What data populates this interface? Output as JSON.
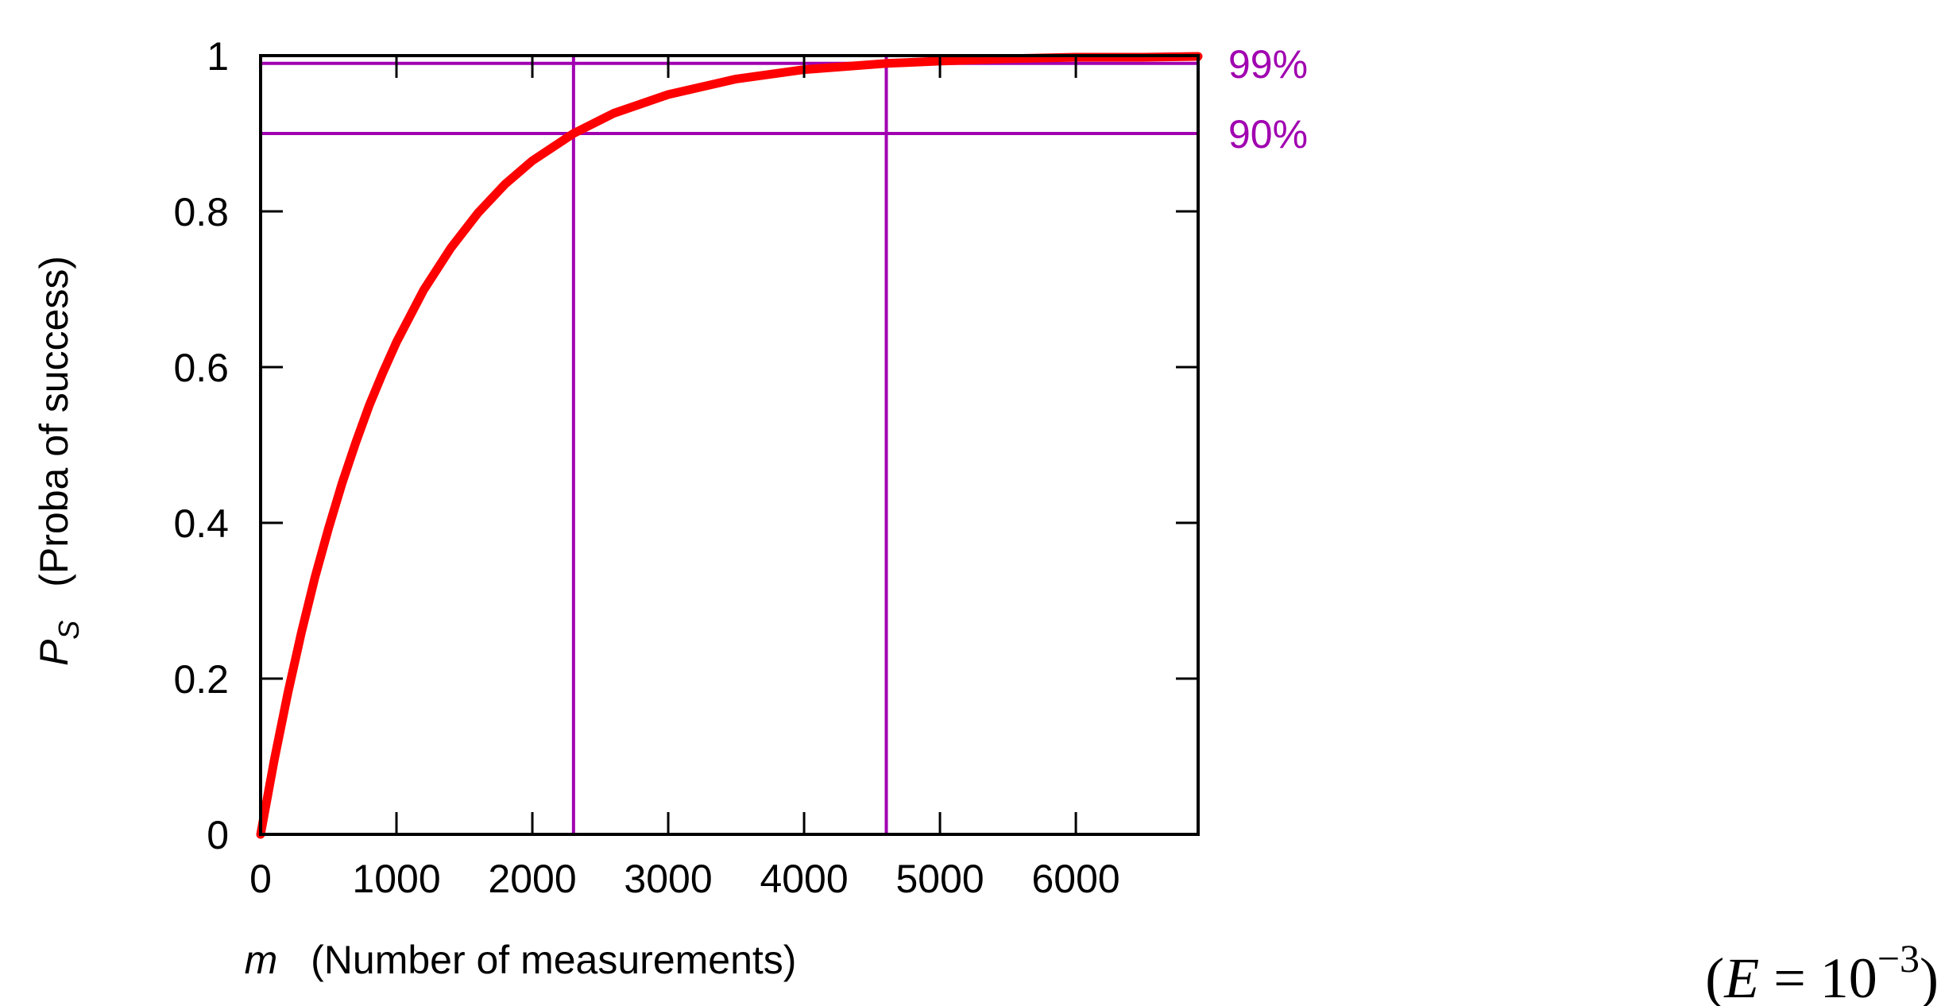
{
  "chart_data": {
    "type": "line",
    "xlabel_symbol": "m",
    "xlabel_text": "(Number of measurements)",
    "ylabel_symbol": "P",
    "ylabel_subscript": "S",
    "ylabel_text": "(Proba of success)",
    "xlim": [
      0,
      6900
    ],
    "ylim": [
      0,
      1
    ],
    "xticks": [
      0,
      1000,
      2000,
      3000,
      4000,
      5000,
      6000
    ],
    "yticks": [
      0,
      0.2,
      0.4,
      0.6,
      0.8,
      1
    ],
    "xtick_labels": [
      "0",
      "1000",
      "2000",
      "3000",
      "4000",
      "5000",
      "6000"
    ],
    "ytick_labels": [
      "0",
      "0.2",
      "0.4",
      "0.6",
      "0.8",
      "1"
    ],
    "grid": false,
    "series": [
      {
        "color": "#ff0000",
        "x": [
          0,
          100,
          200,
          300,
          400,
          500,
          600,
          700,
          800,
          900,
          1000,
          1200,
          1400,
          1600,
          1800,
          2000,
          2303,
          2600,
          3000,
          3500,
          4000,
          4605,
          5000,
          5500,
          6000,
          6500,
          6900
        ],
        "y": [
          0,
          0.095,
          0.181,
          0.259,
          0.33,
          0.393,
          0.451,
          0.503,
          0.551,
          0.593,
          0.632,
          0.699,
          0.753,
          0.798,
          0.835,
          0.865,
          0.9,
          0.926,
          0.95,
          0.97,
          0.982,
          0.99,
          0.993,
          0.996,
          0.998,
          0.998,
          0.999
        ]
      }
    ],
    "reference_lines": {
      "color": "#a000b0",
      "horizontal": [
        {
          "y": 0.99,
          "label": "99%"
        },
        {
          "y": 0.9,
          "label": "90%"
        }
      ],
      "vertical": [
        {
          "x": 2303
        },
        {
          "x": 4605
        }
      ]
    },
    "annotation": {
      "open": "(",
      "lhs": "E",
      "eq": " = 10",
      "exponent": "−3",
      "close": ")"
    }
  }
}
